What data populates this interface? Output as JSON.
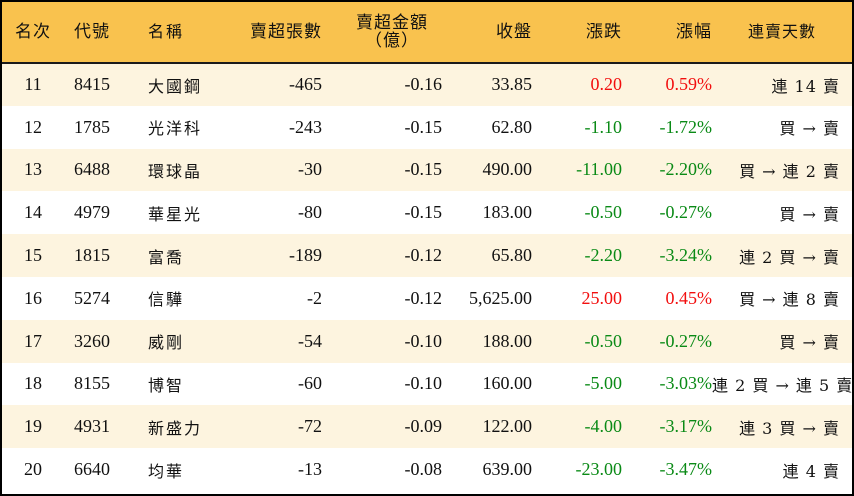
{
  "table": {
    "headers": {
      "rank": "名次",
      "code": "代號",
      "name": "名稱",
      "net_sell_lots": "賣超張數",
      "net_sell_amount_line1": "賣超金額",
      "net_sell_amount_line2": "（億）",
      "close": "收盤",
      "change": "漲跌",
      "change_pct": "漲幅",
      "streak": "連賣天數"
    },
    "colors": {
      "header_bg": "#F9C24E",
      "row_odd_bg": "#FDF4DF",
      "row_even_bg": "#FFFFFF",
      "up": "#F20E0E",
      "down": "#0A8A16"
    },
    "rows": [
      {
        "rank": "11",
        "code": "8415",
        "name": "大國鋼",
        "lots": "-465",
        "amount": "-0.16",
        "close": "33.85",
        "change": "0.20",
        "pct": "0.59%",
        "dir": "up",
        "streak": "連 14 賣"
      },
      {
        "rank": "12",
        "code": "1785",
        "name": "光洋科",
        "lots": "-243",
        "amount": "-0.15",
        "close": "62.80",
        "change": "-1.10",
        "pct": "-1.72%",
        "dir": "down",
        "streak": "買 → 賣"
      },
      {
        "rank": "13",
        "code": "6488",
        "name": "環球晶",
        "lots": "-30",
        "amount": "-0.15",
        "close": "490.00",
        "change": "-11.00",
        "pct": "-2.20%",
        "dir": "down",
        "streak": "買 → 連 2 賣"
      },
      {
        "rank": "14",
        "code": "4979",
        "name": "華星光",
        "lots": "-80",
        "amount": "-0.15",
        "close": "183.00",
        "change": "-0.50",
        "pct": "-0.27%",
        "dir": "down",
        "streak": "買 → 賣"
      },
      {
        "rank": "15",
        "code": "1815",
        "name": "富喬",
        "lots": "-189",
        "amount": "-0.12",
        "close": "65.80",
        "change": "-2.20",
        "pct": "-3.24%",
        "dir": "down",
        "streak": "連 2 買 → 賣"
      },
      {
        "rank": "16",
        "code": "5274",
        "name": "信驊",
        "lots": "-2",
        "amount": "-0.12",
        "close": "5,625.00",
        "change": "25.00",
        "pct": "0.45%",
        "dir": "up",
        "streak": "買 → 連 8 賣"
      },
      {
        "rank": "17",
        "code": "3260",
        "name": "威剛",
        "lots": "-54",
        "amount": "-0.10",
        "close": "188.00",
        "change": "-0.50",
        "pct": "-0.27%",
        "dir": "down",
        "streak": "買 → 賣"
      },
      {
        "rank": "18",
        "code": "8155",
        "name": "博智",
        "lots": "-60",
        "amount": "-0.10",
        "close": "160.00",
        "change": "-5.00",
        "pct": "-3.03%",
        "dir": "down",
        "streak": "連 2 買 → 連 5 賣"
      },
      {
        "rank": "19",
        "code": "4931",
        "name": "新盛力",
        "lots": "-72",
        "amount": "-0.09",
        "close": "122.00",
        "change": "-4.00",
        "pct": "-3.17%",
        "dir": "down",
        "streak": "連 3 買 → 賣"
      },
      {
        "rank": "20",
        "code": "6640",
        "name": "均華",
        "lots": "-13",
        "amount": "-0.08",
        "close": "639.00",
        "change": "-23.00",
        "pct": "-3.47%",
        "dir": "down",
        "streak": "連 4 賣"
      }
    ]
  }
}
